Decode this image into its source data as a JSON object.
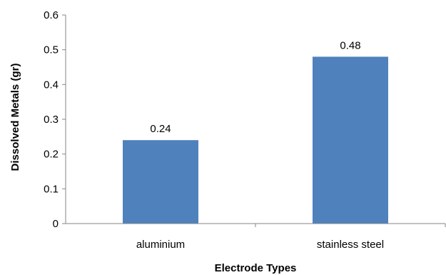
{
  "chart_data": {
    "type": "bar",
    "title": "",
    "xlabel": "Electrode Types",
    "ylabel": "Dissolved Metals (gr)",
    "categories": [
      "aluminium",
      "stainless steel"
    ],
    "values": [
      0.24,
      0.48
    ],
    "data_labels": [
      "0.24",
      "0.48"
    ],
    "ylim": [
      0,
      0.6
    ],
    "yticks": [
      0,
      0.1,
      0.2,
      0.3,
      0.4,
      0.5,
      0.6
    ],
    "ytick_labels": [
      "0",
      "0.1",
      "0.2",
      "0.3",
      "0.4",
      "0.5",
      "0.6"
    ],
    "grid": false,
    "legend": "none",
    "bar_color": "#4f81bd"
  }
}
